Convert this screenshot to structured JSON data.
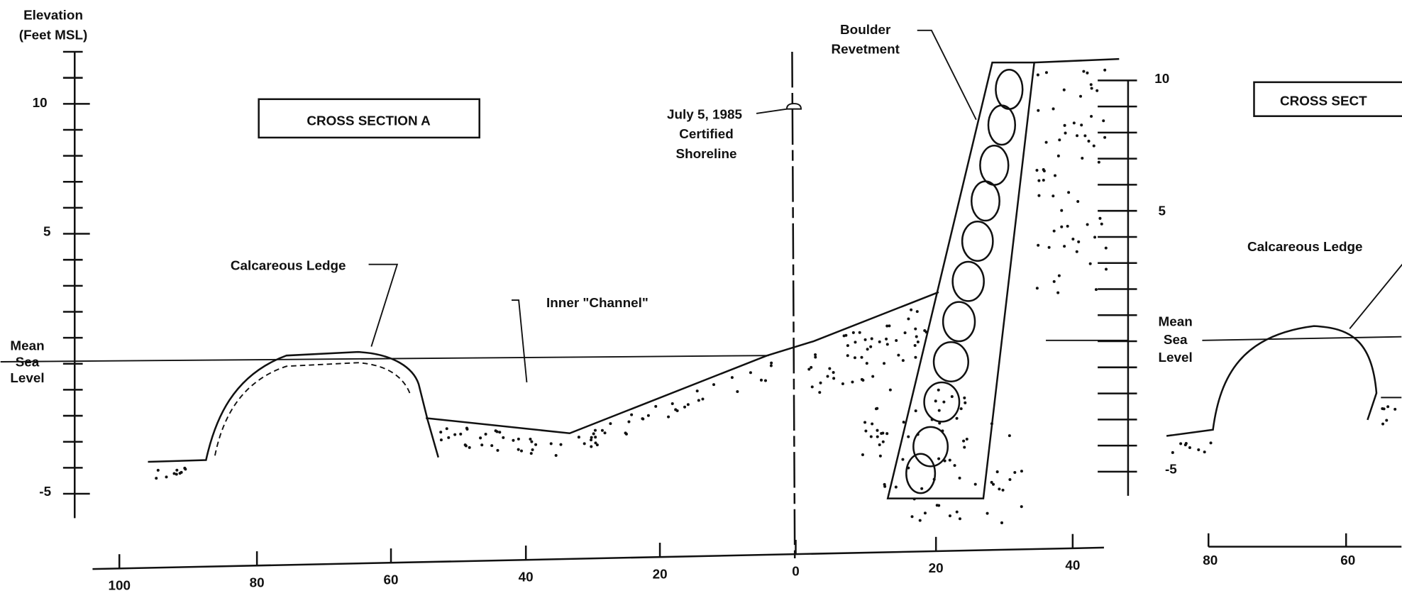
{
  "elevation_label": [
    "Elevation",
    "(Feet MSL)"
  ],
  "section_a": {
    "title": "CROSS SECTION A",
    "y_ticks": [
      "10",
      "5",
      "-5"
    ],
    "mean_sea_level": [
      "Mean",
      "Sea",
      "Level"
    ],
    "ledge_label": "Calcareous Ledge",
    "channel_label": "Inner \"Channel\"",
    "shoreline_label": [
      "July 5, 1985",
      "Certified",
      "Shoreline"
    ],
    "revetment_label": [
      "Boulder",
      "Revetment"
    ],
    "x_ticks": [
      "100",
      "80",
      "60",
      "40",
      "20",
      "0",
      "20",
      "40"
    ]
  },
  "section_b": {
    "title": "CROSS SECT",
    "y_ticks": [
      "10",
      "5",
      "-5"
    ],
    "mean_sea_level": [
      "Mean",
      "Sea",
      "Level"
    ],
    "ledge_label": "Calcareous Ledge",
    "x_ticks": [
      "80",
      "60"
    ]
  }
}
